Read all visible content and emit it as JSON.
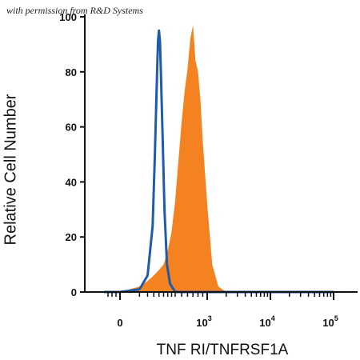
{
  "credit": "with permission from R&D Systems",
  "chart_data": {
    "type": "area",
    "xlabel": "TNF RI/TNFRSF1A",
    "ylabel": "Relative Cell Number",
    "x_scale": "biexponential",
    "x_ticks": [
      {
        "value": "0",
        "base": "0",
        "exp": ""
      },
      {
        "value": "1000",
        "base": "10",
        "exp": "3"
      },
      {
        "value": "10000",
        "base": "10",
        "exp": "4"
      },
      {
        "value": "100000",
        "base": "10",
        "exp": "5"
      }
    ],
    "y_ticks": [
      0,
      20,
      40,
      60,
      80,
      100
    ],
    "ylim": [
      0,
      100
    ],
    "grid": false,
    "legend": "none",
    "series": [
      {
        "style": "line",
        "color": "#1e5ba8",
        "x": [
          -200,
          0,
          50,
          100,
          140,
          160,
          180,
          190,
          200,
          210,
          220,
          240,
          260,
          290,
          330,
          400,
          600,
          1000,
          10000,
          100000
        ],
        "y": [
          0,
          0,
          1,
          6,
          24,
          50,
          78,
          91,
          95,
          91,
          80,
          55,
          30,
          10,
          3,
          0,
          0,
          0,
          0,
          0
        ]
      },
      {
        "style": "filled",
        "color": "#f58220",
        "x": [
          -200,
          0,
          50,
          100,
          150,
          200,
          250,
          300,
          350,
          400,
          450,
          500,
          550,
          600,
          650,
          700,
          750,
          800,
          850,
          900,
          1000,
          1200,
          1500,
          2000,
          10000,
          100000
        ],
        "y": [
          0,
          0,
          2,
          4,
          6,
          8,
          10,
          15,
          22,
          33,
          48,
          62,
          73,
          81,
          92,
          97,
          84,
          80,
          70,
          55,
          32,
          10,
          2,
          0,
          0,
          0
        ]
      }
    ]
  }
}
